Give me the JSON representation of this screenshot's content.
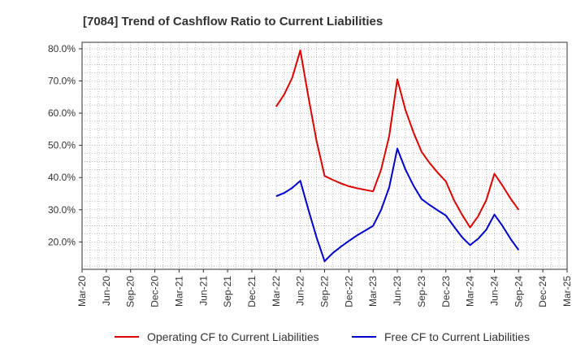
{
  "chart_data": {
    "type": "line",
    "title": "[7084]  Trend of Cashflow Ratio to Current Liabilities",
    "xlabel": "",
    "ylabel": "",
    "x": [
      "Mar-22",
      "Apr-22",
      "May-22",
      "Jun-22",
      "Jul-22",
      "Aug-22",
      "Sep-22",
      "Oct-22",
      "Nov-22",
      "Dec-22",
      "Jan-23",
      "Feb-23",
      "Mar-23",
      "Apr-23",
      "May-23",
      "Jun-23",
      "Jul-23",
      "Aug-23",
      "Sep-23",
      "Oct-23",
      "Nov-23",
      "Dec-23",
      "Jan-24",
      "Feb-24",
      "Mar-24",
      "Apr-24",
      "May-24",
      "Jun-24",
      "Jul-24",
      "Aug-24",
      "Sep-24"
    ],
    "x_ticks": [
      "Mar-20",
      "Jun-20",
      "Sep-20",
      "Dec-20",
      "Mar-21",
      "Jun-21",
      "Sep-21",
      "Dec-21",
      "Mar-22",
      "Jun-22",
      "Sep-22",
      "Dec-22",
      "Mar-23",
      "Jun-23",
      "Sep-23",
      "Dec-23",
      "Mar-24",
      "Jun-24",
      "Sep-24",
      "Dec-24",
      "Mar-25"
    ],
    "y_ticks": [
      "20.0%",
      "30.0%",
      "40.0%",
      "50.0%",
      "60.0%",
      "70.0%",
      "80.0%"
    ],
    "ylim": [
      11.5,
      82
    ],
    "grid": true,
    "legend_position": "bottom",
    "series": [
      {
        "name": "Operating CF to Current Liabilities",
        "color": "#dd0000",
        "values": [
          62.0,
          65.8,
          71.0,
          79.5,
          65.0,
          51.5,
          40.5,
          39.3,
          38.2,
          37.3,
          36.7,
          36.2,
          35.7,
          42.5,
          53.0,
          70.5,
          61.0,
          54.0,
          48.0,
          44.5,
          41.5,
          38.8,
          33.0,
          28.5,
          24.5,
          28.0,
          33.0,
          41.2,
          37.5,
          33.5,
          30.0
        ]
      },
      {
        "name": "Free CF to Current Liabilities",
        "color": "#0000cc",
        "values": [
          34.2,
          35.2,
          36.8,
          39.0,
          30.0,
          21.5,
          14.0,
          16.5,
          18.5,
          20.3,
          22.0,
          23.5,
          25.0,
          30.0,
          37.0,
          49.0,
          42.5,
          37.5,
          33.3,
          31.5,
          29.8,
          28.2,
          24.8,
          21.5,
          19.0,
          21.0,
          23.8,
          28.5,
          25.0,
          21.0,
          17.5
        ]
      }
    ]
  }
}
